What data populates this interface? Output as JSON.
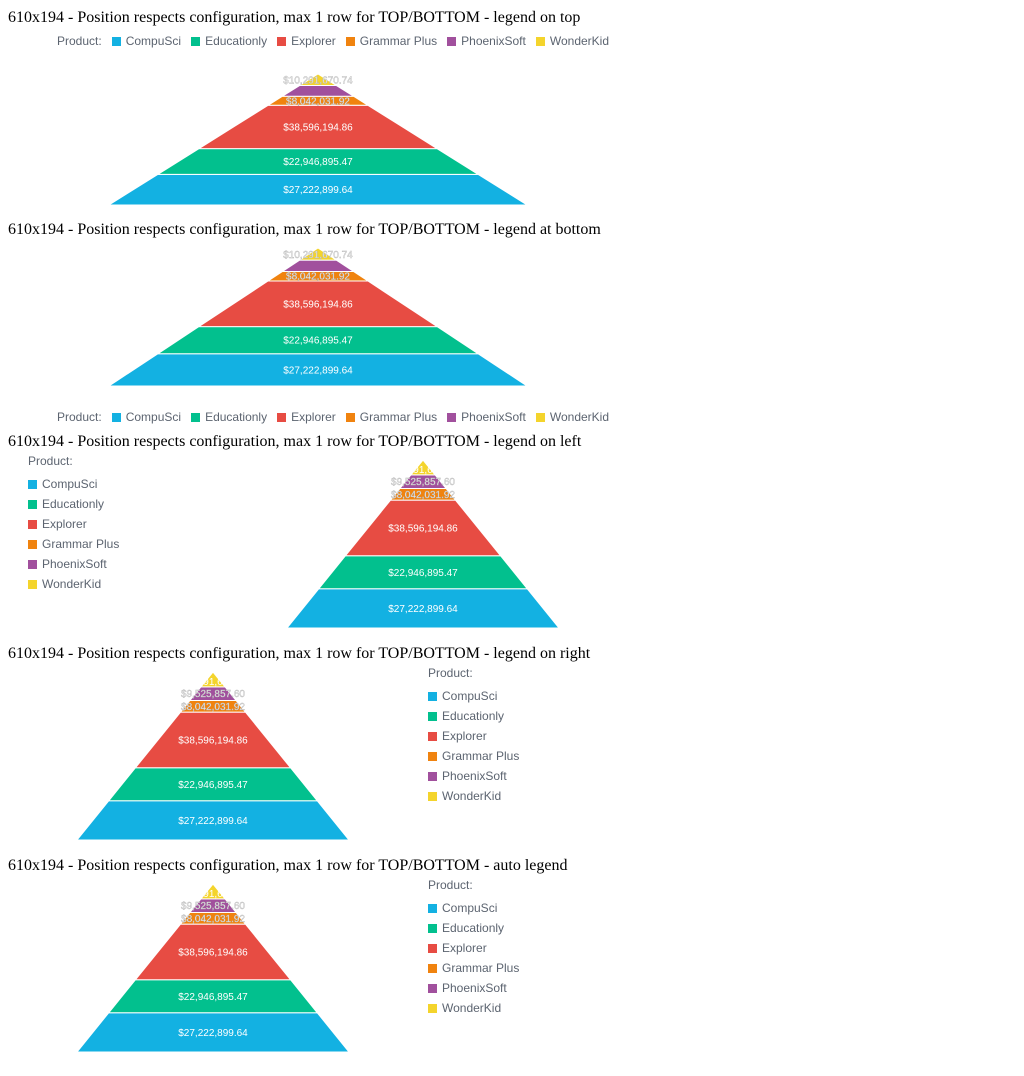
{
  "colors": {
    "CompuSci": "#13b1e2",
    "Educationly": "#02c08e",
    "Explorer": "#e74c43",
    "Grammar Plus": "#f0830f",
    "PhoenixSoft": "#a1509d",
    "WonderKid": "#f4d42c"
  },
  "legend": {
    "title": "Product:",
    "items": [
      "CompuSci",
      "Educationly",
      "Explorer",
      "Grammar Plus",
      "PhoenixSoft",
      "WonderKid"
    ]
  },
  "sections": [
    {
      "title": "610x194 - Position respects configuration, max 1 row for TOP/BOTTOM - legend on top",
      "legend_position": "top"
    },
    {
      "title": "610x194 - Position respects configuration, max 1 row for TOP/BOTTOM - legend at bottom",
      "legend_position": "bottom"
    },
    {
      "title": "610x194 - Position respects configuration, max 1 row for TOP/BOTTOM - legend on left",
      "legend_position": "left"
    },
    {
      "title": "610x194 - Position respects configuration, max 1 row for TOP/BOTTOM - legend on right",
      "legend_position": "right"
    },
    {
      "title": "610x194 - Position respects configuration, max 1 row for TOP/BOTTOM - auto legend",
      "legend_position": "right"
    }
  ],
  "chart_data": {
    "type": "pyramid",
    "segments": [
      {
        "name": "CompuSci",
        "value": 27222899.64,
        "label": "$27,222,899.64"
      },
      {
        "name": "Educationly",
        "value": 22946895.47,
        "label": "$22,946,895.47"
      },
      {
        "name": "Explorer",
        "value": 38596194.86,
        "label": "$38,596,194.86"
      },
      {
        "name": "Grammar Plus",
        "value": 8042031.92,
        "label": "$8,042,031.92"
      },
      {
        "name": "PhoenixSoft",
        "value": 9525857.6,
        "label": "$9,525,857.60"
      },
      {
        "name": "WonderKid",
        "value": 10291670.74,
        "label": "$10,291,670.74"
      }
    ]
  }
}
